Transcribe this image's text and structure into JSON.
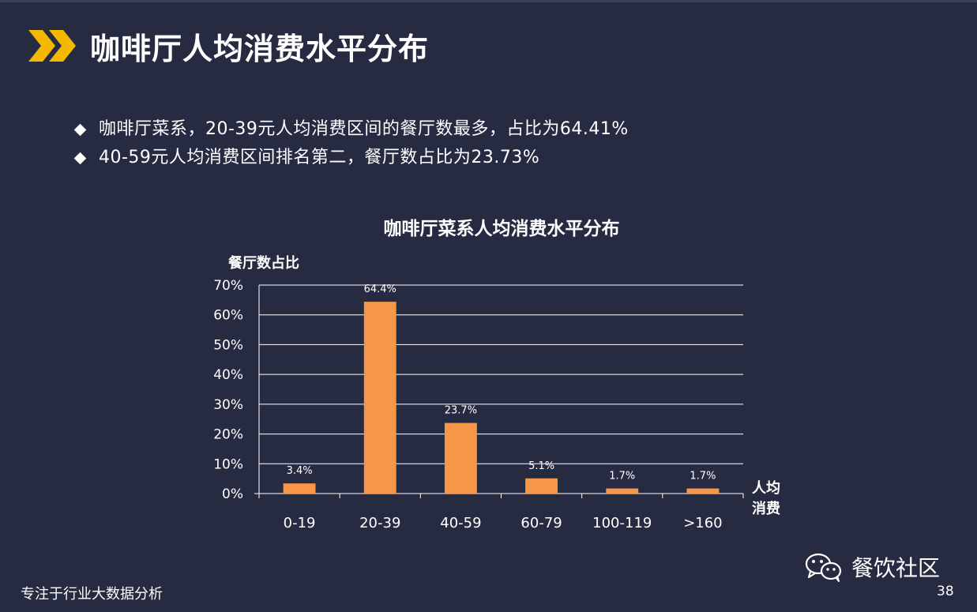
{
  "header": {
    "title": "咖啡厅人均消费水平分布"
  },
  "bullets": [
    "咖啡厅菜系，20-39元人均消费区间的餐厅数最多，占比为64.41%",
    "40-59元人均消费区间排名第二，餐厅数占比为23.73%"
  ],
  "chart_data": {
    "type": "bar",
    "title": "咖啡厅菜系人均消费水平分布",
    "ylabel": "餐厅数占比",
    "xlabel": "人均消费",
    "categories": [
      "0-19",
      "20-39",
      "40-59",
      "60-79",
      "100-119",
      ">160"
    ],
    "values": [
      3.4,
      64.4,
      23.7,
      5.1,
      1.7,
      1.7
    ],
    "data_labels": [
      "3.4%",
      "64.4%",
      "23.7%",
      "5.1%",
      "1.7%",
      "1.7%"
    ],
    "ylim": [
      0,
      70
    ],
    "yticks": [
      "0%",
      "10%",
      "20%",
      "30%",
      "40%",
      "50%",
      "60%",
      "70%"
    ],
    "grid": true,
    "bar_color": "#f79646"
  },
  "footer": {
    "left_text": "专注于行业大数据分析",
    "brand": "餐饮社区",
    "page": "38"
  },
  "colors": {
    "background": "#272b42",
    "accent": "#f5b800"
  },
  "icons": {
    "header": "double-chevron-icon",
    "brand": "wechat-icon"
  }
}
